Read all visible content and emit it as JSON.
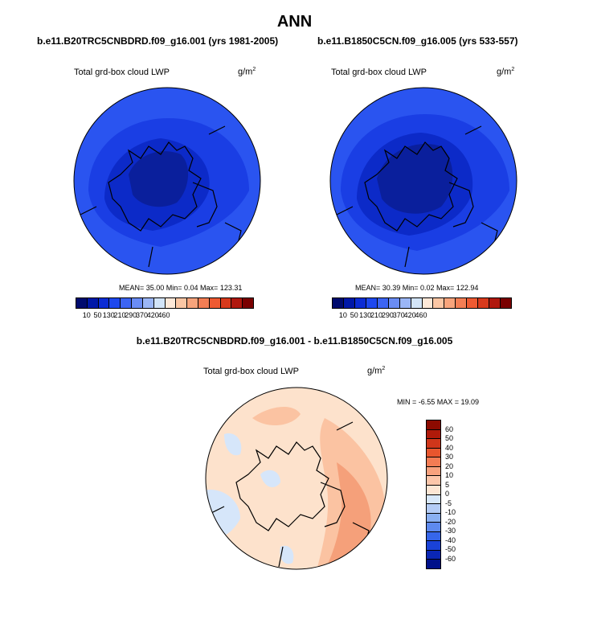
{
  "page": {
    "title": "ANN"
  },
  "panels": [
    {
      "case": "b.e11.B20TRC5CNBDRD.f09_g16.001 (yrs 1981-2005)",
      "variable": "Total grd-box cloud LWP",
      "units_base": "g/m",
      "units_exp": "2",
      "stats": "MEAN=  35.00  Min=   0.04  Max= 123.31",
      "colorbar_ticks": [
        "10",
        "50",
        "130",
        "210",
        "290",
        "370",
        "420",
        "460"
      ],
      "colorbar_colors": [
        "#000b6e",
        "#0018a8",
        "#0c2cd4",
        "#1e48ee",
        "#3c64f2",
        "#6a8cf4",
        "#9bb6f6",
        "#d2e4f8",
        "#fde8d8",
        "#fbc6a4",
        "#f8a47c",
        "#f47e54",
        "#ee5a32",
        "#d83a1c",
        "#b0180e",
        "#7a0000"
      ],
      "map_colors": {
        "outer": "#2a54f0",
        "mid": "#1a3ee4",
        "inner": "#0c2ac8",
        "core": "#0a1f9c"
      }
    },
    {
      "case": "b.e11.B1850C5CN.f09_g16.005 (yrs 533-557)",
      "variable": "Total grd-box cloud LWP",
      "units_base": "g/m",
      "units_exp": "2",
      "stats": "MEAN=  30.39  Min=   0.02  Max= 122.94",
      "colorbar_ticks": [
        "10",
        "50",
        "130",
        "210",
        "290",
        "370",
        "420",
        "460"
      ],
      "colorbar_colors": [
        "#000b6e",
        "#0018a8",
        "#0c2cd4",
        "#1e48ee",
        "#3c64f2",
        "#6a8cf4",
        "#9bb6f6",
        "#d2e4f8",
        "#fde8d8",
        "#fbc6a4",
        "#f8a47c",
        "#f47e54",
        "#ee5a32",
        "#d83a1c",
        "#b0180e",
        "#7a0000"
      ],
      "map_colors": {
        "outer": "#2a54f0",
        "mid": "#1a3ee4",
        "inner": "#0c2ac8",
        "core": "#0a1f9c"
      }
    }
  ],
  "difference": {
    "title": "b.e11.B20TRC5CNBDRD.f09_g16.001 - b.e11.B1850C5CN.f09_g16.005",
    "variable": "Total grd-box cloud LWP",
    "units_base": "g/m",
    "units_exp": "2",
    "stats": "MIN =  -6.55 MAX =  19.09",
    "colorbar_ticks": [
      "60",
      "50",
      "40",
      "30",
      "20",
      "10",
      "5",
      "0",
      "-5",
      "-10",
      "-20",
      "-30",
      "-40",
      "-50",
      "-60"
    ],
    "colorbar_colors": [
      "#8c0a00",
      "#b01a0a",
      "#d0361a",
      "#e8562e",
      "#f47c54",
      "#f8a27e",
      "#fcc6aa",
      "#fde6d4",
      "#d8e8fa",
      "#b4ccf6",
      "#8ab0f2",
      "#5e8aee",
      "#3666ea",
      "#1a42d8",
      "#0a26b4",
      "#00108a"
    ],
    "map_colors": {
      "base": "#fde2cc",
      "warm": "#fbc3a2",
      "warmer": "#f5a07a",
      "cool": "#d6e6fa"
    }
  }
}
